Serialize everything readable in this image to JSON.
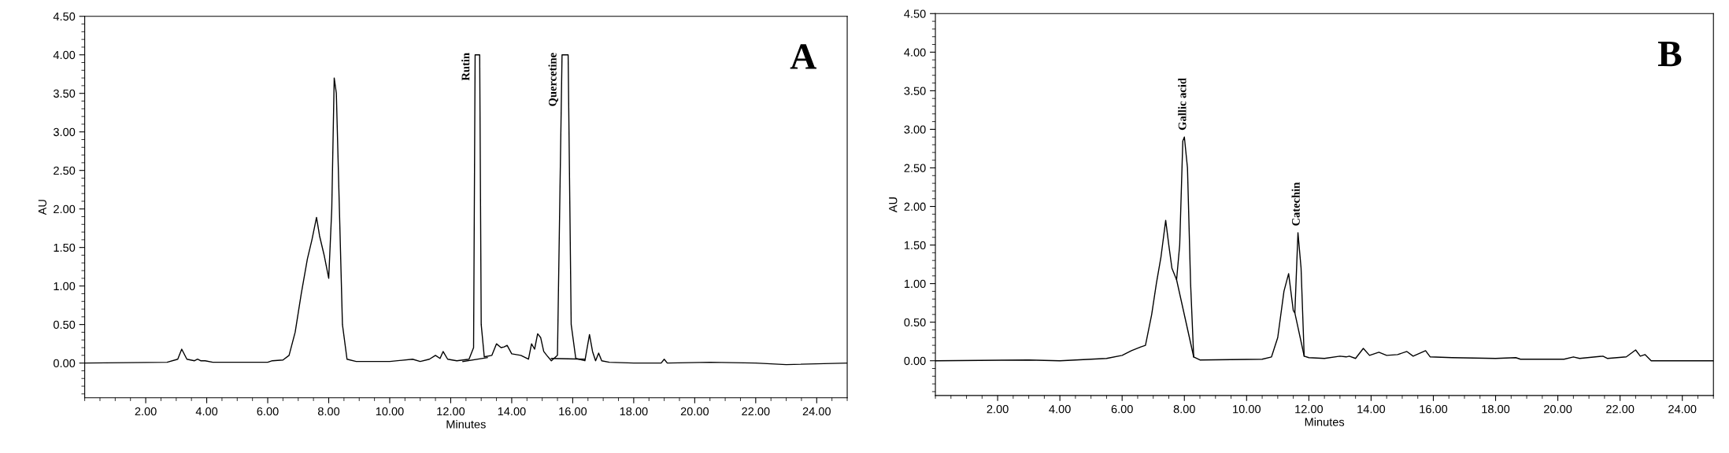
{
  "chart_data": [
    {
      "type": "line",
      "xlabel": "Minutes",
      "ylabel": "AU",
      "xlim": [
        0,
        25
      ],
      "ylim": [
        -0.45,
        4.5
      ],
      "xticks": [
        {
          "value": 2,
          "label": "2.00"
        },
        {
          "value": 4,
          "label": "4.00"
        },
        {
          "value": 6,
          "label": "6.00"
        },
        {
          "value": 8,
          "label": "8.00"
        },
        {
          "value": 10,
          "label": "10.00"
        },
        {
          "value": 12,
          "label": "12.00"
        },
        {
          "value": 14,
          "label": "14.00"
        },
        {
          "value": 16,
          "label": "16.00"
        },
        {
          "value": 18,
          "label": "18.00"
        },
        {
          "value": 20,
          "label": "20.00"
        },
        {
          "value": 22,
          "label": "22.00"
        },
        {
          "value": 24,
          "label": "24.00"
        }
      ],
      "yticks": [
        {
          "value": 0,
          "label": "0.00"
        },
        {
          "value": 0.5,
          "label": "0.50"
        },
        {
          "value": 1,
          "label": "1.00"
        },
        {
          "value": 1.5,
          "label": "1.50"
        },
        {
          "value": 2,
          "label": "2.00"
        },
        {
          "value": 2.5,
          "label": "2.50"
        },
        {
          "value": 3,
          "label": "3.00"
        },
        {
          "value": 3.5,
          "label": "3.50"
        },
        {
          "value": 4,
          "label": "4.00"
        },
        {
          "value": 4.5,
          "label": "4.50"
        }
      ],
      "grid": false,
      "marker": "none",
      "line_style": "solid",
      "series": [
        {
          "color": "#000000",
          "x": [
            0,
            2.7,
            3.05,
            3.18,
            3.35,
            3.6,
            3.7,
            3.8,
            3.95,
            4.2,
            6.0,
            6.15,
            6.5,
            6.7,
            6.9,
            7.1,
            7.3,
            7.45,
            7.6,
            7.7,
            7.85,
            8.0,
            8.1,
            8.18,
            8.25,
            8.35,
            8.45,
            8.6,
            8.9,
            10.0,
            10.75,
            11.0,
            11.3,
            11.5,
            11.65,
            11.75,
            11.9,
            12.2,
            12.6,
            12.75,
            12.8,
            12.95,
            13.0,
            13.1,
            13.35,
            13.5,
            13.65,
            13.75,
            13.85,
            14.0,
            14.3,
            14.55,
            14.65,
            14.75,
            14.85,
            14.95,
            15.05,
            15.15,
            15.3,
            15.5,
            15.65,
            15.85,
            15.95,
            16.1,
            16.4,
            16.55,
            16.65,
            16.75,
            16.85,
            16.95,
            17.2,
            18.0,
            18.9,
            19.0,
            19.1,
            20.5,
            22.0,
            23.0,
            25.0
          ],
          "values": [
            0,
            0.01,
            0.05,
            0.18,
            0.05,
            0.03,
            0.05,
            0.03,
            0.03,
            0.01,
            0.01,
            0.03,
            0.04,
            0.1,
            0.4,
            0.9,
            1.35,
            1.6,
            1.89,
            1.65,
            1.4,
            1.1,
            2.0,
            3.7,
            3.5,
            2.0,
            0.5,
            0.05,
            0.02,
            0.02,
            0.05,
            0.02,
            0.05,
            0.1,
            0.06,
            0.15,
            0.05,
            0.03,
            0.05,
            0.2,
            4.0,
            4.0,
            0.5,
            0.08,
            0.1,
            0.25,
            0.2,
            0.21,
            0.23,
            0.12,
            0.1,
            0.05,
            0.25,
            0.18,
            0.38,
            0.33,
            0.15,
            0.1,
            0.03,
            0.1,
            4.0,
            4.0,
            0.5,
            0.06,
            0.03,
            0.37,
            0.15,
            0.03,
            0.13,
            0.03,
            0.01,
            0.0,
            0.0,
            0.05,
            0.0,
            0.01,
            0.0,
            -0.02,
            0.0
          ]
        },
        {
          "color": "#000000",
          "x": [
            12.4,
            13.2
          ],
          "values": [
            0.02,
            0.07
          ]
        },
        {
          "color": "#000000",
          "x": [
            15.3,
            16.4
          ],
          "values": [
            0.06,
            0.05
          ]
        }
      ],
      "annotations": [
        {
          "text": "Rutin",
          "x": 12.8,
          "y": 4.0
        },
        {
          "text": "Quercetine",
          "x": 15.65,
          "y": 4.0
        },
        "A"
      ]
    },
    {
      "type": "line",
      "xlabel": "Minutes",
      "ylabel": "AU",
      "xlim": [
        0,
        25
      ],
      "ylim": [
        -0.45,
        4.5
      ],
      "xticks": [
        {
          "value": 2,
          "label": "2.00"
        },
        {
          "value": 4,
          "label": "4.00"
        },
        {
          "value": 6,
          "label": "6.00"
        },
        {
          "value": 8,
          "label": "8.00"
        },
        {
          "value": 10,
          "label": "10.00"
        },
        {
          "value": 12,
          "label": "12.00"
        },
        {
          "value": 14,
          "label": "14.00"
        },
        {
          "value": 16,
          "label": "16.00"
        },
        {
          "value": 18,
          "label": "18.00"
        },
        {
          "value": 20,
          "label": "20.00"
        },
        {
          "value": 22,
          "label": "22.00"
        },
        {
          "value": 24,
          "label": "24.00"
        }
      ],
      "yticks": [
        {
          "value": 0,
          "label": "0.00"
        },
        {
          "value": 0.5,
          "label": "0.50"
        },
        {
          "value": 1,
          "label": "1.00"
        },
        {
          "value": 1.5,
          "label": "1.50"
        },
        {
          "value": 2,
          "label": "2.00"
        },
        {
          "value": 2.5,
          "label": "2.50"
        },
        {
          "value": 3,
          "label": "3.00"
        },
        {
          "value": 3.5,
          "label": "3.50"
        },
        {
          "value": 4,
          "label": "4.00"
        },
        {
          "value": 4.5,
          "label": "4.50"
        }
      ],
      "grid": false,
      "marker": "none",
      "line_style": "solid",
      "series": [
        {
          "color": "#000000",
          "x": [
            0,
            3.0,
            4.0,
            5.5,
            6.0,
            6.3,
            6.6,
            6.75,
            6.95,
            7.1,
            7.25,
            7.4,
            7.5,
            7.6,
            7.75,
            7.85,
            7.95,
            8.0,
            8.1,
            8.2,
            8.3,
            8.5,
            10.5,
            10.8,
            11.0,
            11.2,
            11.35,
            11.5,
            11.55,
            11.65,
            11.75,
            11.85,
            12.0,
            12.5,
            13.0,
            13.2,
            13.3,
            13.5,
            13.75,
            13.95,
            14.25,
            14.5,
            14.85,
            15.15,
            15.35,
            15.75,
            15.9,
            16.6,
            18.0,
            18.65,
            18.8,
            20.2,
            20.5,
            20.7,
            21.45,
            21.6,
            22.2,
            22.5,
            22.65,
            22.8,
            23.0,
            25.0
          ],
          "values": [
            0,
            0.01,
            0.0,
            0.03,
            0.07,
            0.13,
            0.18,
            0.2,
            0.6,
            1.0,
            1.35,
            1.82,
            1.5,
            1.2,
            1.05,
            1.5,
            2.85,
            2.9,
            2.5,
            1.0,
            0.05,
            0.01,
            0.02,
            0.05,
            0.3,
            0.9,
            1.13,
            0.65,
            0.62,
            1.66,
            1.2,
            0.06,
            0.04,
            0.03,
            0.06,
            0.05,
            0.06,
            0.03,
            0.16,
            0.07,
            0.11,
            0.07,
            0.08,
            0.12,
            0.06,
            0.13,
            0.05,
            0.04,
            0.03,
            0.04,
            0.02,
            0.02,
            0.05,
            0.03,
            0.06,
            0.03,
            0.05,
            0.14,
            0.06,
            0.08,
            0.0,
            0.0
          ]
        },
        {
          "color": "#000000",
          "x": [
            7.75,
            8.3
          ],
          "values": [
            1.05,
            0.05
          ]
        },
        {
          "color": "#000000",
          "x": [
            11.55,
            11.85
          ],
          "values": [
            0.62,
            0.06
          ]
        }
      ],
      "annotations": [
        {
          "text": "Gallic acid",
          "x": 8.0,
          "y": 2.9
        },
        {
          "text": "Catechin",
          "x": 11.65,
          "y": 1.66
        },
        "B"
      ]
    }
  ]
}
